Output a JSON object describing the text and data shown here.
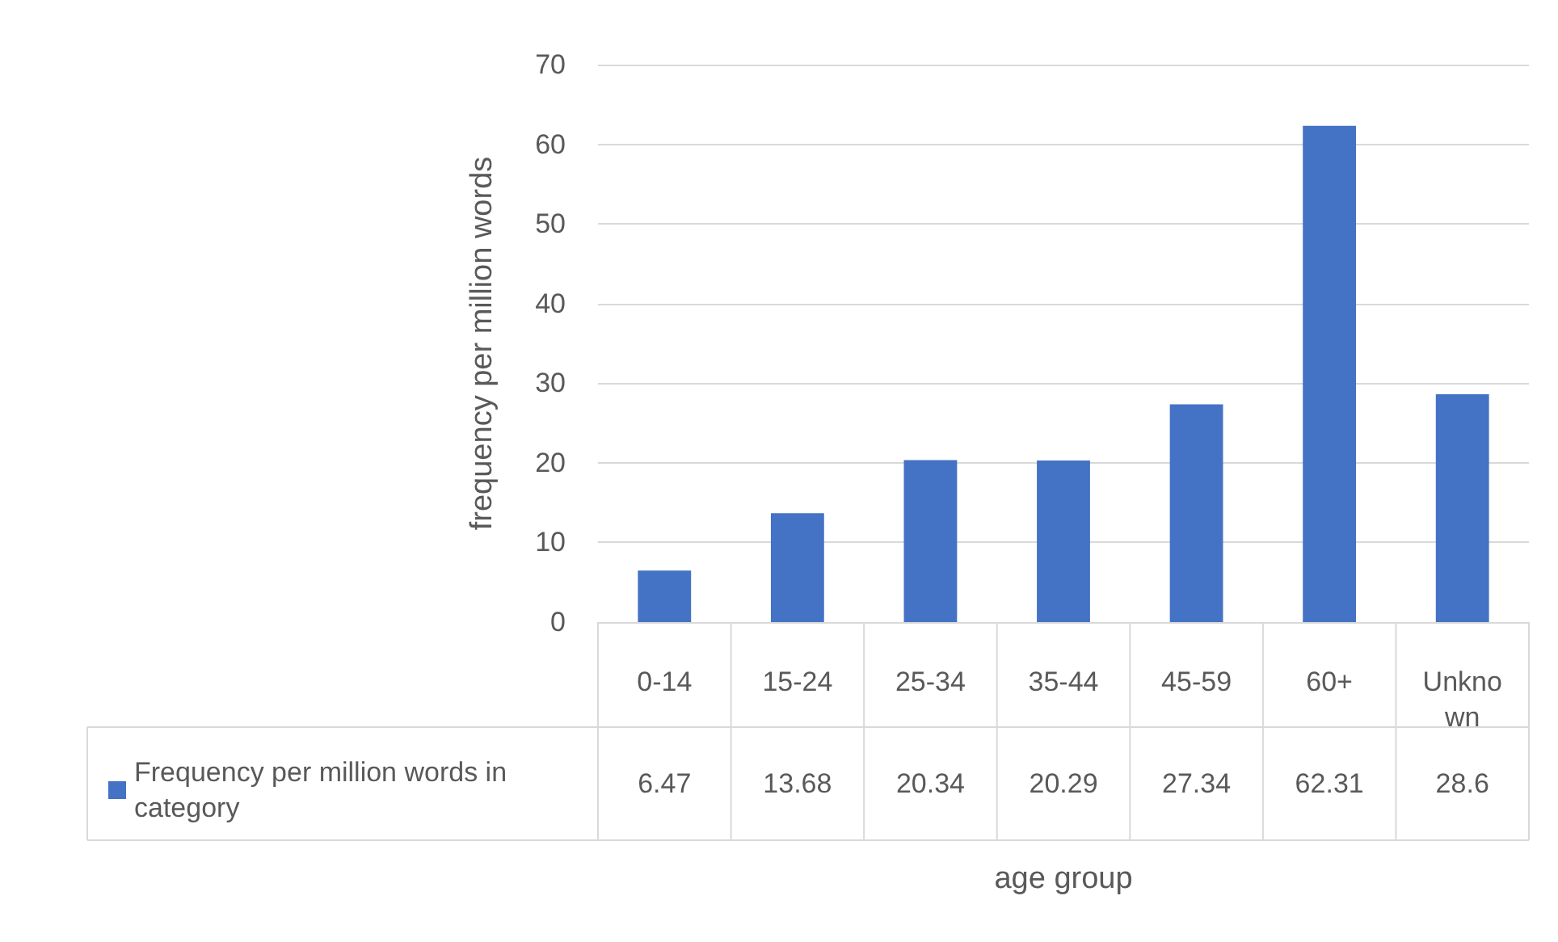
{
  "chart_data": {
    "type": "bar",
    "xlabel": "age group",
    "ylabel": "frequency per million words",
    "categories": [
      "0-14",
      "15-24",
      "25-34",
      "35-44",
      "45-59",
      "60+",
      "Unknown"
    ],
    "series": [
      {
        "name": "Frequency per million words in category",
        "color": "#4472c4",
        "values": [
          6.47,
          13.68,
          20.34,
          20.29,
          27.34,
          62.31,
          28.6
        ]
      }
    ],
    "ylim": [
      0,
      70
    ],
    "yticks": [
      0,
      10,
      20,
      30,
      40,
      50,
      60,
      70
    ],
    "grid": "y",
    "legend": "bottom left",
    "data_labels": true
  }
}
